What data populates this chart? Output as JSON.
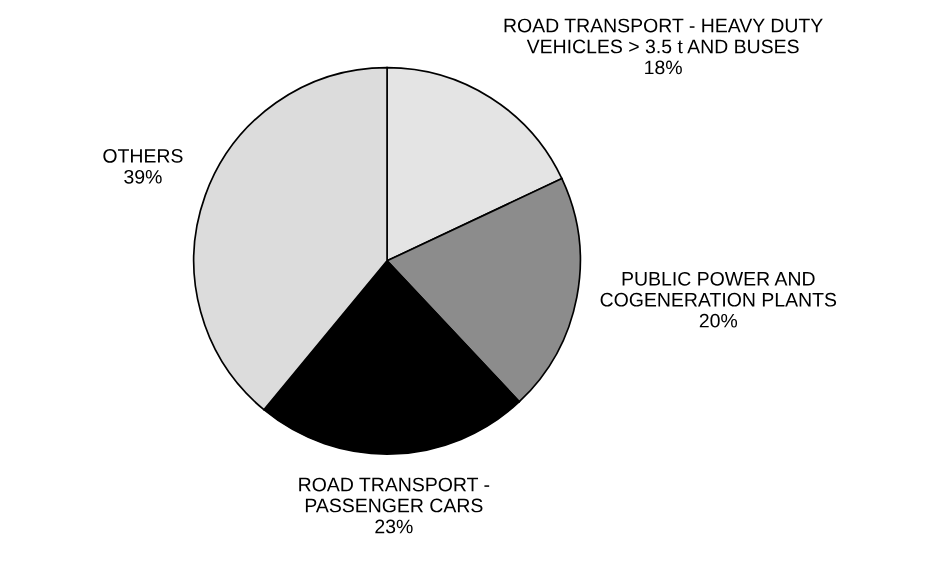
{
  "chart_data": {
    "type": "pie",
    "categories": [
      "ROAD TRANSPORT - HEAVY DUTY\nVEHICLES > 3.5 t AND BUSES",
      "PUBLIC POWER AND\nCOGENERATION PLANTS",
      "ROAD TRANSPORT -\nPASSENGER CARS",
      "OTHERS"
    ],
    "values": [
      18,
      20,
      23,
      39
    ],
    "value_labels": [
      "18%",
      "20%",
      "23%",
      "39%"
    ],
    "colors": [
      "#e4e4e4",
      "#8c8c8c",
      "#000000",
      "#dcdcdc"
    ],
    "legend": false
  }
}
